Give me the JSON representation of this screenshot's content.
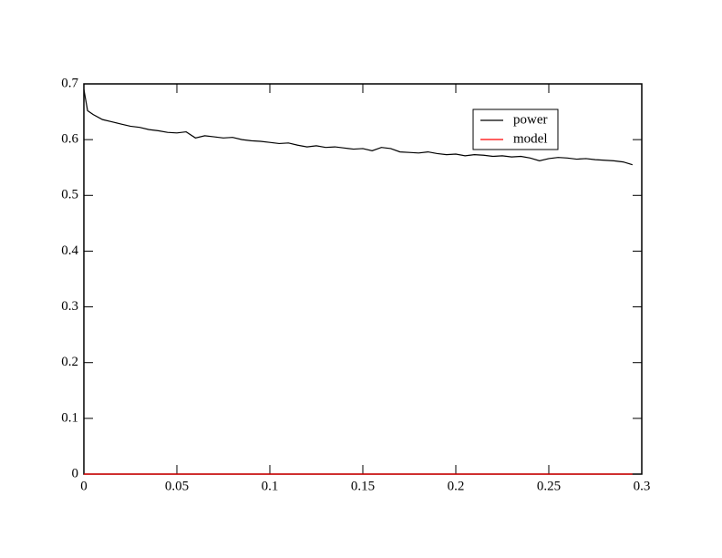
{
  "chart_data": {
    "type": "line",
    "x": [
      0,
      0.002,
      0.005,
      0.01,
      0.015,
      0.02,
      0.025,
      0.03,
      0.035,
      0.04,
      0.045,
      0.05,
      0.055,
      0.06,
      0.065,
      0.07,
      0.075,
      0.08,
      0.085,
      0.09,
      0.095,
      0.1,
      0.105,
      0.11,
      0.115,
      0.12,
      0.125,
      0.13,
      0.135,
      0.14,
      0.145,
      0.15,
      0.155,
      0.16,
      0.165,
      0.17,
      0.175,
      0.18,
      0.185,
      0.19,
      0.195,
      0.2,
      0.205,
      0.21,
      0.215,
      0.22,
      0.225,
      0.23,
      0.235,
      0.24,
      0.245,
      0.25,
      0.255,
      0.26,
      0.265,
      0.27,
      0.275,
      0.28,
      0.285,
      0.29,
      0.295
    ],
    "series": [
      {
        "name": "power",
        "color": "#000000",
        "values": [
          0.69,
          0.652,
          0.645,
          0.636,
          0.632,
          0.628,
          0.624,
          0.622,
          0.618,
          0.616,
          0.613,
          0.612,
          0.614,
          0.603,
          0.607,
          0.605,
          0.603,
          0.604,
          0.6,
          0.598,
          0.597,
          0.595,
          0.593,
          0.594,
          0.59,
          0.587,
          0.589,
          0.586,
          0.587,
          0.585,
          0.583,
          0.584,
          0.58,
          0.586,
          0.584,
          0.578,
          0.577,
          0.576,
          0.578,
          0.575,
          0.573,
          0.574,
          0.571,
          0.573,
          0.572,
          0.57,
          0.571,
          0.569,
          0.57,
          0.567,
          0.562,
          0.566,
          0.568,
          0.567,
          0.565,
          0.566,
          0.564,
          0.563,
          0.562,
          0.56,
          0.555
        ]
      },
      {
        "name": "model",
        "color": "#ff0000",
        "values": [
          0,
          0,
          0,
          0,
          0,
          0,
          0,
          0,
          0,
          0,
          0,
          0,
          0,
          0,
          0,
          0,
          0,
          0,
          0,
          0,
          0,
          0,
          0,
          0,
          0,
          0,
          0,
          0,
          0,
          0,
          0,
          0,
          0,
          0,
          0,
          0,
          0,
          0,
          0,
          0,
          0,
          0,
          0,
          0,
          0,
          0,
          0,
          0,
          0,
          0,
          0,
          0,
          0,
          0,
          0,
          0,
          0,
          0,
          0,
          0,
          0
        ]
      }
    ],
    "xlim": [
      0,
      0.3
    ],
    "xticks": [
      0,
      0.05,
      0.1,
      0.15,
      0.2,
      0.25,
      0.3
    ],
    "ylim": [
      0,
      0.7
    ],
    "yticks": [
      0,
      0.1,
      0.2,
      0.3,
      0.4,
      0.5,
      0.6,
      0.7
    ],
    "legend": "upper-right"
  }
}
